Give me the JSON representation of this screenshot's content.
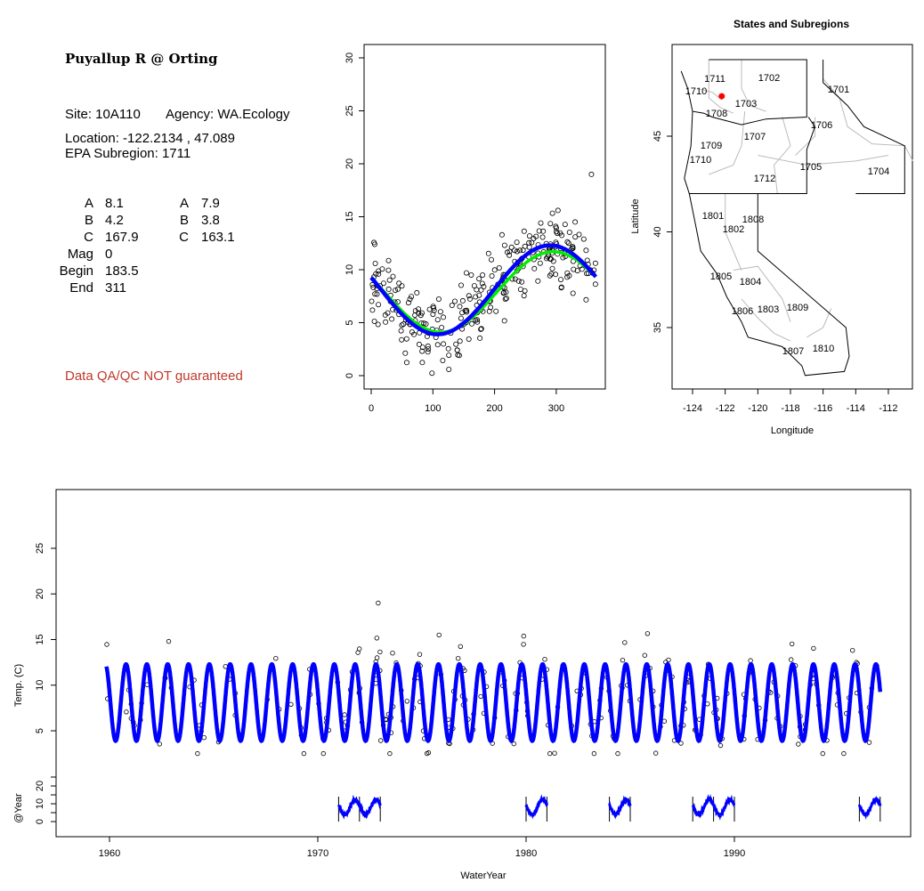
{
  "info": {
    "station_title": "Puyallup R @ Orting",
    "site": "Site: 10A110",
    "agency": "Agency: WA.Ecology",
    "location": "Location: -122.2134 , 47.089",
    "subregion": "EPA Subregion: 1711",
    "params_left": [
      {
        "label": "A",
        "value": "8.1"
      },
      {
        "label": "B",
        "value": "4.2"
      },
      {
        "label": "C",
        "value": "167.9"
      },
      {
        "label": "Mag",
        "value": "0"
      },
      {
        "label": "Begin",
        "value": "183.5"
      },
      {
        "label": "End",
        "value": "311"
      }
    ],
    "params_right": [
      {
        "label": "A",
        "value": "7.9"
      },
      {
        "label": "B",
        "value": "3.8"
      },
      {
        "label": "C",
        "value": "163.1"
      }
    ],
    "warning": "Data QA/QC NOT guaranteed"
  },
  "colors": {
    "blue_fit": "#0000ff",
    "green_fit": "#00ee00",
    "site_marker": "#ff0000",
    "warning": "#c0392b",
    "subregion_lines": "#bbbbbb"
  },
  "chart_data": [
    {
      "type": "scatter",
      "title": "",
      "xlabel": "",
      "ylabel": "",
      "xlim": [
        0,
        365
      ],
      "ylim": [
        0,
        31
      ],
      "xticks": [
        "0",
        "100",
        "200",
        "300"
      ],
      "yticks": [
        "0",
        "5",
        "10",
        "15",
        "20",
        "25",
        "30"
      ],
      "series": [
        {
          "name": "observations",
          "kind": "points",
          "noise_sd": 1.8,
          "n": 300,
          "outlier": [
            357,
            19
          ]
        },
        {
          "name": "fit_blue",
          "kind": "line",
          "A": 8.1,
          "B": 4.2,
          "peak_day": 290,
          "color": "#0000ff"
        },
        {
          "name": "fit_green",
          "kind": "line",
          "A": 7.9,
          "B": 3.8,
          "peak_day": 295,
          "color": "#00ee00"
        }
      ]
    },
    {
      "type": "map",
      "title": "States and Subregions",
      "xlabel": "Longitude",
      "ylabel": "Latitude",
      "xticks": [
        "-124",
        "-122",
        "-120",
        "-118",
        "-116",
        "-114",
        "-112"
      ],
      "yticks": [
        "35",
        "40",
        "45"
      ],
      "site": {
        "lon": -122.2134,
        "lat": 47.089
      },
      "subregion_labels": [
        "1711",
        "1702",
        "1701",
        "1710",
        "1703",
        "1708",
        "1706",
        "1707",
        "1709",
        "1710",
        "1705",
        "1704",
        "1712",
        "1801",
        "1808",
        "1802",
        "1805",
        "1804",
        "1806",
        "1803",
        "1809",
        "1807",
        "1810"
      ]
    },
    {
      "type": "line",
      "xlabel": "WaterYear",
      "ylabel": "Temp. (C)",
      "ylabel2": "@Year",
      "xlim": [
        1957.5,
        1998.5
      ],
      "xticks": [
        "1960",
        "1970",
        "1980",
        "1990"
      ],
      "yticks": [
        "5",
        "10",
        "15",
        "20",
        "25"
      ],
      "yticks2": [
        "0",
        "10",
        "20"
      ],
      "fit_span": [
        1959.85,
        1997.0
      ],
      "obs_span": [
        1959.8,
        1997.0
      ],
      "yearly_segments": [
        [
          1971,
          1973
        ],
        [
          1980,
          1981
        ],
        [
          1984,
          1985
        ],
        [
          1988,
          1990
        ],
        [
          1996,
          1997
        ]
      ]
    }
  ]
}
